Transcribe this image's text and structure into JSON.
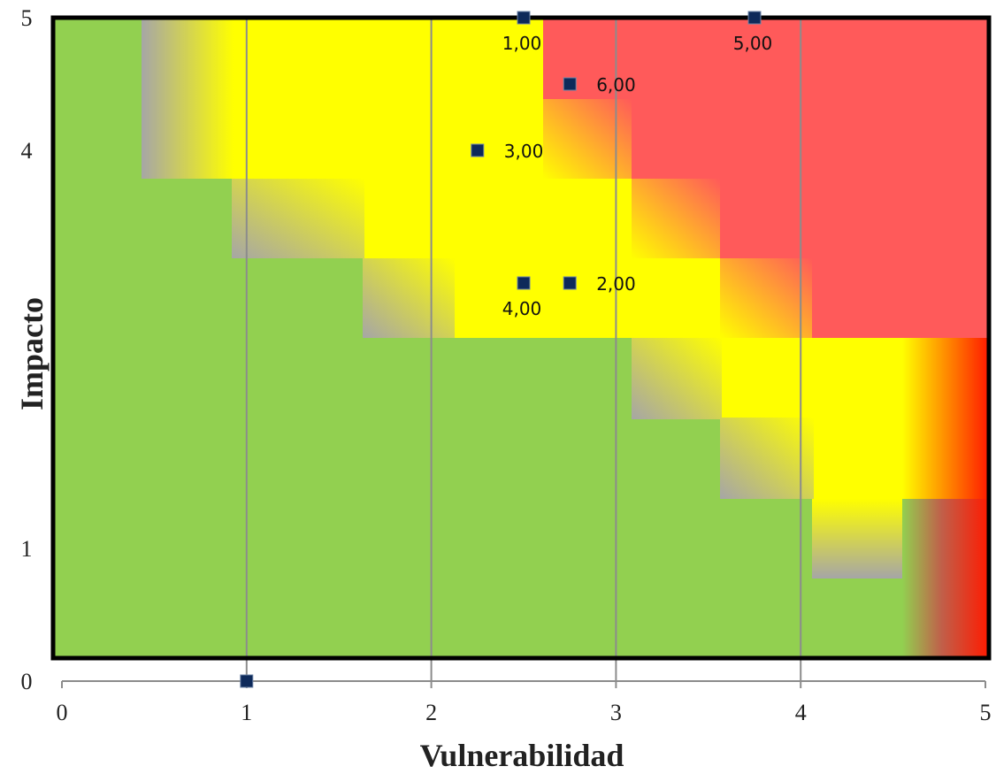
{
  "chart_data": {
    "type": "scatter",
    "title": "",
    "xlabel": "Vulnerabilidad",
    "ylabel": "Impacto",
    "xlim": [
      0,
      5
    ],
    "ylim": [
      0,
      5
    ],
    "xticks": [
      "0",
      "1",
      "2",
      "3",
      "4",
      "5"
    ],
    "yticks": [
      "0",
      "1",
      "",
      "",
      "4",
      "5"
    ],
    "grid": "vertical",
    "background": "risk heat map (green / yellow / red zones)",
    "colors": {
      "low": "#92d050",
      "medium": "#ffff00",
      "high": "#ff5a5a",
      "transition": "#a6a6a6",
      "marker": "#0e2a5a",
      "gridline": "#8c8c8c",
      "border": "#000000"
    },
    "series": [
      {
        "points": [
          {
            "x": 2.5,
            "y": 5.0,
            "label": "1,00"
          },
          {
            "x": 2.75,
            "y": 3.0,
            "label": "2,00"
          },
          {
            "x": 2.25,
            "y": 4.0,
            "label": "3,00"
          },
          {
            "x": 2.5,
            "y": 3.0,
            "label": "4,00"
          },
          {
            "x": 3.75,
            "y": 5.0,
            "label": "5,00"
          },
          {
            "x": 2.75,
            "y": 4.5,
            "label": "6,00"
          },
          {
            "x": 1.0,
            "y": 0.0,
            "label": ""
          }
        ]
      }
    ]
  }
}
